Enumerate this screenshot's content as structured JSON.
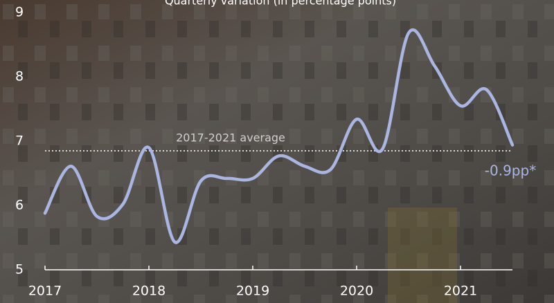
{
  "chart_data": {
    "type": "line",
    "title": "Quarterly variation (in percentage points)",
    "x": [
      2017,
      2017.25,
      2017.5,
      2017.75,
      2018,
      2018.25,
      2018.5,
      2018.75,
      2019,
      2019.25,
      2019.5,
      2019.75,
      2020,
      2020.25,
      2020.5,
      2020.75,
      2021,
      2021.25,
      2021.5
    ],
    "values": [
      5.88,
      6.61,
      5.83,
      6.02,
      6.9,
      5.43,
      6.38,
      6.42,
      6.42,
      6.77,
      6.61,
      6.56,
      7.34,
      6.88,
      8.68,
      8.17,
      7.55,
      7.8,
      6.94
    ],
    "color": "#aab5e2",
    "xlim": [
      2017,
      2021.5
    ],
    "xticks": [
      2017,
      2018,
      2019,
      2020,
      2021
    ],
    "ylim": [
      5,
      9
    ],
    "yticks": [
      5,
      6,
      7,
      8,
      9
    ],
    "average": {
      "value": 6.85,
      "label": "2017-2021 average"
    },
    "annotation": "-0.9pp*"
  }
}
